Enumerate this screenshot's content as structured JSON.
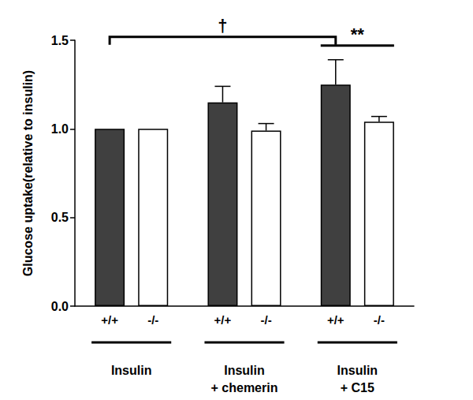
{
  "chart_data": {
    "type": "bar",
    "y_label": "Glucose uptake(relative to insulin)",
    "categories": [
      "Insulin",
      "Insulin\n+ chemerin",
      "Insulin\n+ C15"
    ],
    "series": [
      {
        "name": "+/+",
        "color": "#404040",
        "values": [
          1.0,
          1.15,
          1.25
        ],
        "errors": [
          0,
          0.09,
          0.14
        ]
      },
      {
        "name": "-/-",
        "color": "#ffffff",
        "values": [
          1.0,
          0.99,
          1.04
        ],
        "errors": [
          0,
          0.04,
          0.03
        ]
      }
    ],
    "ylim": [
      0,
      1.5
    ],
    "yticks": [
      {
        "value": 0,
        "label": "0.0"
      },
      {
        "value": 0.5,
        "label": "0.5"
      },
      {
        "value": 1.0,
        "label": "1.0"
      },
      {
        "value": 1.5,
        "label": "1.5"
      }
    ],
    "grid": false,
    "annotations": [
      {
        "text": "†",
        "from": [
          "Insulin",
          "+/+"
        ],
        "to": [
          "Insulin\n+ C15",
          "+/+"
        ],
        "line_style": "bracket"
      },
      {
        "text": "**",
        "from": [
          "Insulin\n+ C15",
          "+/+"
        ],
        "to": [
          "Insulin\n+ C15",
          "-/-"
        ],
        "line_style": "solid"
      }
    ]
  }
}
